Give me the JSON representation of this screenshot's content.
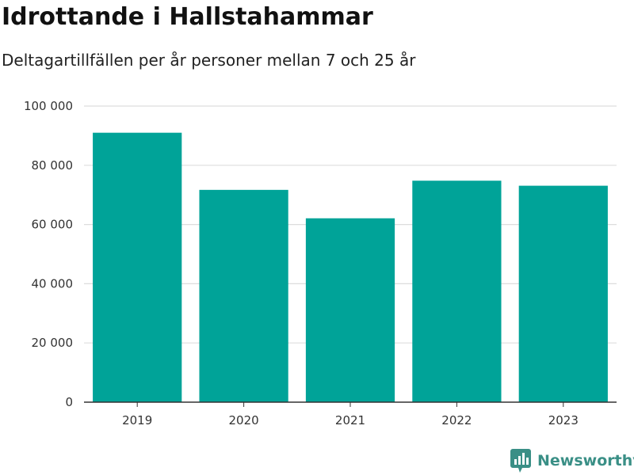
{
  "colors": {
    "bar": "#00a398",
    "grid": "#dddddd",
    "axis": "#333333",
    "brand": "#3a8f86"
  },
  "chart_data": {
    "type": "bar",
    "title": "Idrottande i Hallstahammar",
    "subtitle": "Deltagartillfällen per år personer mellan 7 och 25 år",
    "xlabel": "",
    "ylabel": "",
    "categories": [
      "2019",
      "2020",
      "2021",
      "2022",
      "2023"
    ],
    "values": [
      91000,
      71700,
      62100,
      74800,
      73100
    ],
    "ylim": [
      0,
      100000
    ],
    "yticks": [
      0,
      20000,
      40000,
      60000,
      80000,
      100000
    ],
    "ytick_labels": [
      "0",
      "20 000",
      "40 000",
      "60 000",
      "80 000",
      "100 000"
    ],
    "grid": true,
    "legend": "none"
  },
  "brand": {
    "name": "Newsworthy",
    "icon": "newsworthy-logo-icon"
  }
}
